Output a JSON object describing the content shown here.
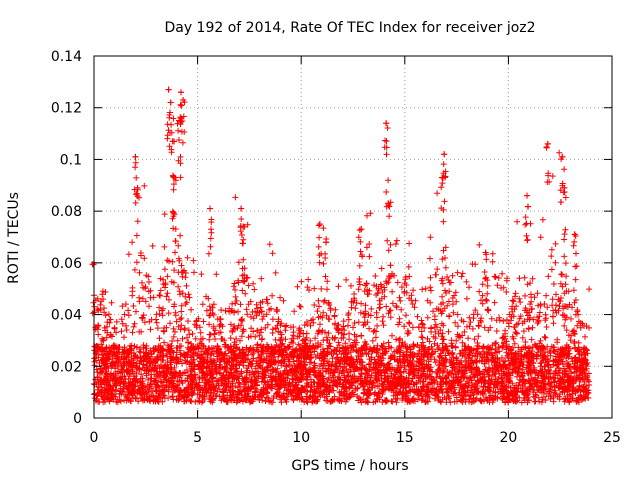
{
  "chart_data": {
    "type": "scatter",
    "title": "Day 192 of 2014, Rate Of TEC Index for receiver joz2",
    "xlabel": "GPS time / hours",
    "ylabel": "ROTI / TECUs",
    "xlim": [
      0,
      25
    ],
    "ylim": [
      0,
      0.14
    ],
    "xticks": [
      0,
      5,
      10,
      15,
      20,
      25
    ],
    "xtick_labels": [
      "0",
      "5",
      "10",
      "15",
      "20",
      "25"
    ],
    "yticks": [
      0,
      0.02,
      0.04,
      0.06,
      0.08,
      0.1,
      0.12,
      0.14
    ],
    "ytick_labels": [
      "0",
      "0.02",
      "0.04",
      "0.06",
      "0.08",
      "0.1",
      "0.12",
      "0.14"
    ],
    "grid": true,
    "marker": "+",
    "color": "#ff0000",
    "series": [
      {
        "name": "ROTI",
        "x_range": [
          0,
          23.9
        ],
        "typical_range": [
          0.005,
          0.04
        ],
        "notable_points": [
          {
            "x": 0.0,
            "y": 0.06
          },
          {
            "x": 2.0,
            "y": 0.101
          },
          {
            "x": 2.1,
            "y": 0.089
          },
          {
            "x": 3.6,
            "y": 0.127
          },
          {
            "x": 3.7,
            "y": 0.122
          },
          {
            "x": 3.8,
            "y": 0.107
          },
          {
            "x": 3.9,
            "y": 0.093
          },
          {
            "x": 4.2,
            "y": 0.126
          },
          {
            "x": 4.3,
            "y": 0.123
          },
          {
            "x": 4.1,
            "y": 0.115
          },
          {
            "x": 5.6,
            "y": 0.081
          },
          {
            "x": 7.1,
            "y": 0.081
          },
          {
            "x": 7.2,
            "y": 0.074
          },
          {
            "x": 10.9,
            "y": 0.075
          },
          {
            "x": 11.2,
            "y": 0.068
          },
          {
            "x": 12.9,
            "y": 0.073
          },
          {
            "x": 14.1,
            "y": 0.114
          },
          {
            "x": 14.2,
            "y": 0.083
          },
          {
            "x": 16.9,
            "y": 0.102
          },
          {
            "x": 16.8,
            "y": 0.093
          },
          {
            "x": 18.9,
            "y": 0.064
          },
          {
            "x": 20.9,
            "y": 0.086
          },
          {
            "x": 21.9,
            "y": 0.106
          },
          {
            "x": 22.6,
            "y": 0.101
          },
          {
            "x": 22.7,
            "y": 0.089
          },
          {
            "x": 23.2,
            "y": 0.071
          }
        ]
      }
    ]
  }
}
